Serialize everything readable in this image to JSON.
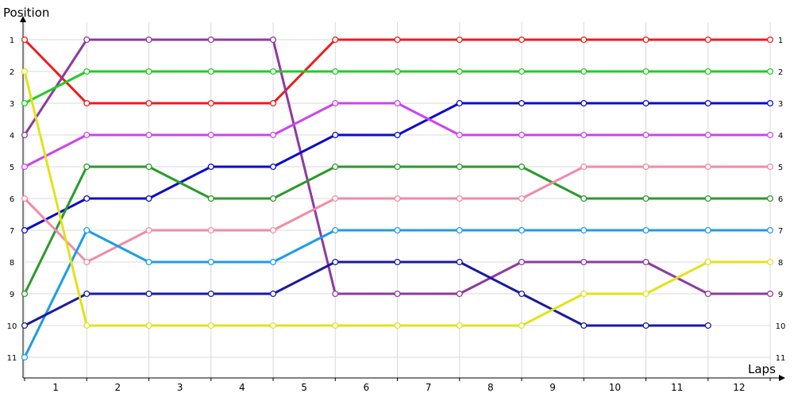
{
  "chart_data": {
    "type": "line",
    "title": "",
    "ylabel": "Position",
    "xlabel": "Laps",
    "y_inverted": true,
    "ylim": [
      1,
      11
    ],
    "grid": true,
    "legend": "none",
    "y_ticks": [
      "1",
      "2",
      "3",
      "4",
      "5",
      "6",
      "7",
      "8",
      "9",
      "10",
      "11"
    ],
    "x_ticks": [
      "1",
      "2",
      "3",
      "4",
      "5",
      "6",
      "7",
      "8",
      "9",
      "10",
      "11",
      "12"
    ],
    "x": [
      0,
      1,
      2,
      3,
      4,
      5,
      6,
      7,
      8,
      9,
      10,
      11,
      12
    ],
    "series": [
      {
        "color": "#ee1c1c",
        "values": [
          1,
          3,
          3,
          3,
          3,
          1,
          1,
          1,
          1,
          1,
          1,
          1,
          1
        ]
      },
      {
        "color": "#8e3a9e",
        "values": [
          4,
          1,
          1,
          1,
          1,
          9,
          9,
          9,
          8,
          8,
          8,
          9,
          9
        ]
      },
      {
        "color": "#22cc22",
        "values": [
          3,
          2,
          2,
          2,
          2,
          2,
          2,
          2,
          2,
          2,
          2,
          2,
          2
        ]
      },
      {
        "color": "#0b0bcc",
        "values": [
          7,
          6,
          6,
          5,
          5,
          4,
          4,
          3,
          3,
          3,
          3,
          3,
          3
        ]
      },
      {
        "color": "#cc44ee",
        "values": [
          5,
          4,
          4,
          4,
          4,
          3,
          3,
          4,
          4,
          4,
          4,
          4,
          4
        ]
      },
      {
        "color": "#2a9a2a",
        "values": [
          9,
          5,
          5,
          6,
          6,
          5,
          5,
          5,
          5,
          6,
          6,
          6,
          6
        ]
      },
      {
        "color": "#f28aa8",
        "values": [
          6,
          8,
          7,
          7,
          7,
          6,
          6,
          6,
          6,
          5,
          5,
          5,
          5
        ]
      },
      {
        "color": "#1c9ce8",
        "values": [
          11,
          7,
          8,
          8,
          8,
          7,
          7,
          7,
          7,
          7,
          7,
          7,
          7
        ]
      },
      {
        "color": "#1a1aa0",
        "values": [
          10,
          9,
          9,
          9,
          9,
          8,
          8,
          8,
          9,
          10,
          10,
          10,
          null
        ]
      },
      {
        "color": "#e2e21a",
        "values": [
          2,
          10,
          10,
          10,
          10,
          10,
          10,
          10,
          10,
          9,
          9,
          8,
          8
        ]
      }
    ]
  }
}
